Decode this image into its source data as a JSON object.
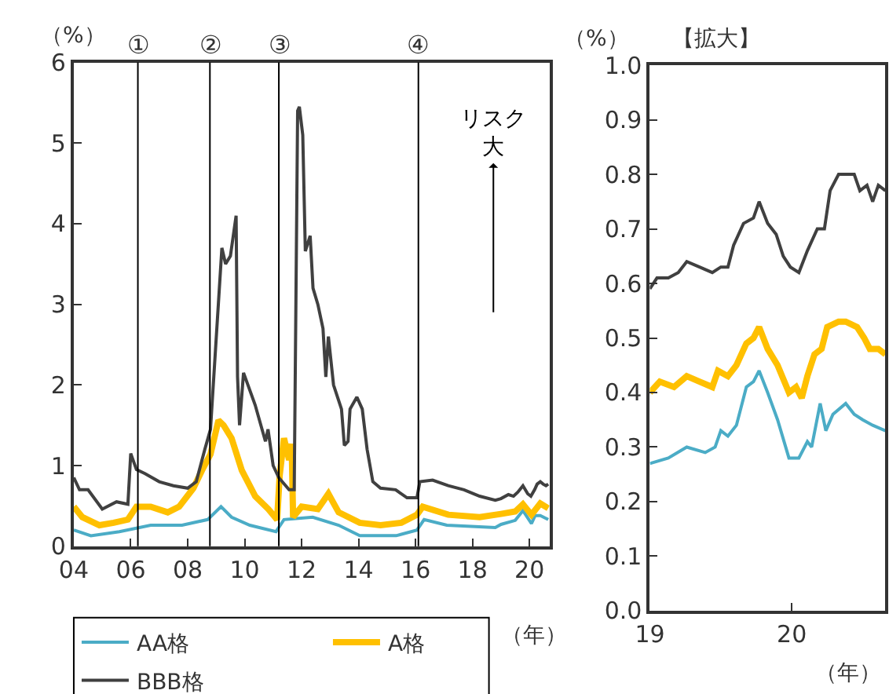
{
  "chart_data": [
    {
      "type": "line",
      "xlabel": "（年）",
      "ylabel": "（%）",
      "annotations": [
        "リスク大"
      ],
      "xlim": [
        2004,
        2020.7
      ],
      "ylim": [
        0,
        6
      ],
      "xticks": [
        {
          "value": 2004,
          "label": "04"
        },
        {
          "value": 2006,
          "label": "06"
        },
        {
          "value": 2008,
          "label": "08"
        },
        {
          "value": 2010,
          "label": "10"
        },
        {
          "value": 2012,
          "label": "12"
        },
        {
          "value": 2014,
          "label": "14"
        },
        {
          "value": 2016,
          "label": "16"
        },
        {
          "value": 2018,
          "label": "18"
        },
        {
          "value": 2020,
          "label": "20"
        }
      ],
      "yticks": [
        0,
        1,
        2,
        3,
        4,
        5,
        6
      ],
      "legend": "bottom",
      "ref_lines": [
        {
          "axis": "x",
          "value": 2006.25,
          "label": "①"
        },
        {
          "axis": "x",
          "value": 2008.78,
          "label": "②"
        },
        {
          "axis": "x",
          "value": 2011.2,
          "label": "③"
        },
        {
          "axis": "x",
          "value": 2016.1,
          "label": "④"
        }
      ],
      "series": [
        {
          "name": "AA格",
          "color": "#4bacc6",
          "x": [
            2004.0,
            2004.6,
            2005.6,
            2006.7,
            2007.8,
            2008.7,
            2009.17,
            2009.54,
            2010.18,
            2011.1,
            2011.38,
            2012.39,
            2013.3,
            2014.04,
            2015.32,
            2016.05,
            2016.3,
            2017.1,
            2018.8,
            2019.0,
            2019.5,
            2019.77,
            2020.07,
            2020.2,
            2020.38,
            2020.66
          ],
          "values": [
            0.2,
            0.13,
            0.18,
            0.26,
            0.26,
            0.33,
            0.49,
            0.36,
            0.26,
            0.18,
            0.33,
            0.36,
            0.26,
            0.13,
            0.13,
            0.2,
            0.33,
            0.26,
            0.23,
            0.27,
            0.32,
            0.44,
            0.28,
            0.38,
            0.38,
            0.33
          ]
        },
        {
          "name": "A格",
          "color": "#ffc000",
          "x": [
            2004.0,
            2004.3,
            2004.9,
            2005.4,
            2005.9,
            2006.2,
            2006.7,
            2007.3,
            2007.7,
            2008.2,
            2008.5,
            2008.8,
            2009.08,
            2009.26,
            2009.54,
            2009.9,
            2010.37,
            2010.83,
            2011.14,
            2011.23,
            2011.38,
            2011.56,
            2011.65,
            2011.7,
            2012.0,
            2012.57,
            2012.94,
            2013.3,
            2014.04,
            2014.77,
            2015.5,
            2016.05,
            2016.25,
            2017.15,
            2018.25,
            2019.0,
            2019.5,
            2019.77,
            2020.07,
            2020.38,
            2020.66
          ],
          "values": [
            0.49,
            0.36,
            0.26,
            0.29,
            0.33,
            0.49,
            0.49,
            0.42,
            0.49,
            0.72,
            0.94,
            1.14,
            1.56,
            1.5,
            1.34,
            0.94,
            0.62,
            0.46,
            0.33,
            0.88,
            1.34,
            1.07,
            1.27,
            0.36,
            0.49,
            0.46,
            0.65,
            0.42,
            0.29,
            0.26,
            0.29,
            0.39,
            0.49,
            0.39,
            0.36,
            0.4,
            0.43,
            0.52,
            0.39,
            0.53,
            0.47
          ]
        },
        {
          "name": "BBB格",
          "color": "#404040",
          "x": [
            2004.0,
            2004.2,
            2004.5,
            2005.0,
            2005.5,
            2005.9,
            2006.0,
            2006.2,
            2006.5,
            2007.0,
            2007.5,
            2008.0,
            2008.3,
            2008.6,
            2008.8,
            2009.2,
            2009.33,
            2009.5,
            2009.7,
            2009.75,
            2009.82,
            2009.96,
            2010.37,
            2010.73,
            2010.82,
            2011.0,
            2011.2,
            2011.56,
            2011.74,
            2011.86,
            2011.92,
            2012.04,
            2012.13,
            2012.3,
            2012.4,
            2012.57,
            2012.75,
            2012.85,
            2012.94,
            2013.12,
            2013.4,
            2013.5,
            2013.63,
            2013.7,
            2013.94,
            2014.13,
            2014.3,
            2014.5,
            2014.77,
            2015.3,
            2015.7,
            2016.05,
            2016.15,
            2016.6,
            2017.15,
            2017.7,
            2018.25,
            2018.8,
            2019.0,
            2019.26,
            2019.44,
            2019.59,
            2019.77,
            2019.94,
            2020.05,
            2020.18,
            2020.27,
            2020.38,
            2020.48,
            2020.58,
            2020.66
          ],
          "values": [
            0.85,
            0.7,
            0.7,
            0.46,
            0.55,
            0.52,
            1.15,
            0.95,
            0.9,
            0.8,
            0.75,
            0.72,
            0.8,
            1.2,
            1.45,
            3.7,
            3.5,
            3.6,
            4.1,
            2.1,
            1.5,
            2.15,
            1.75,
            1.3,
            1.45,
            1.0,
            0.85,
            0.7,
            0.7,
            5.4,
            5.45,
            5.1,
            3.66,
            3.85,
            3.2,
            3.0,
            2.7,
            2.1,
            2.6,
            2.0,
            1.7,
            1.25,
            1.3,
            1.7,
            1.85,
            1.7,
            1.2,
            0.8,
            0.72,
            0.7,
            0.6,
            0.6,
            0.8,
            0.82,
            0.75,
            0.7,
            0.62,
            0.57,
            0.59,
            0.64,
            0.62,
            0.67,
            0.75,
            0.65,
            0.62,
            0.7,
            0.77,
            0.8,
            0.77,
            0.75,
            0.77
          ]
        }
      ]
    },
    {
      "type": "line",
      "title": "【拡大】",
      "xlabel": "（年）",
      "ylabel": "（%）",
      "xlim": [
        2019,
        2020.66
      ],
      "ylim": [
        0,
        1
      ],
      "xticks": [
        {
          "value": 2019,
          "label": "19"
        },
        {
          "value": 2020,
          "label": "20"
        }
      ],
      "yticks": [
        {
          "value": 0,
          "label": "0.0"
        },
        {
          "value": 0.1,
          "label": "0.1"
        },
        {
          "value": 0.2,
          "label": "0.2"
        },
        {
          "value": 0.3,
          "label": "0.3"
        },
        {
          "value": 0.4,
          "label": "0.4"
        },
        {
          "value": 0.5,
          "label": "0.5"
        },
        {
          "value": 0.6,
          "label": "0.6"
        },
        {
          "value": 0.7,
          "label": "0.7"
        },
        {
          "value": 0.8,
          "label": "0.8"
        },
        {
          "value": 0.9,
          "label": "0.9"
        },
        {
          "value": 1,
          "label": "1.0"
        }
      ],
      "series": [
        {
          "color": "#4bacc6",
          "x": [
            2019.0,
            2019.13,
            2019.26,
            2019.39,
            2019.46,
            2019.5,
            2019.55,
            2019.61,
            2019.68,
            2019.73,
            2019.77,
            2019.83,
            2019.9,
            2019.98,
            2020.05,
            2020.11,
            2020.14,
            2020.2,
            2020.24,
            2020.29,
            2020.38,
            2020.44,
            2020.5,
            2020.57,
            2020.66
          ],
          "values": [
            0.27,
            0.28,
            0.3,
            0.29,
            0.3,
            0.33,
            0.32,
            0.34,
            0.41,
            0.42,
            0.44,
            0.4,
            0.35,
            0.28,
            0.28,
            0.31,
            0.3,
            0.38,
            0.33,
            0.36,
            0.38,
            0.36,
            0.35,
            0.34,
            0.33
          ]
        },
        {
          "color": "#ffc000",
          "x": [
            2019.0,
            2019.07,
            2019.17,
            2019.26,
            2019.35,
            2019.44,
            2019.48,
            2019.55,
            2019.61,
            2019.68,
            2019.73,
            2019.77,
            2019.83,
            2019.9,
            2019.98,
            2020.03,
            2020.07,
            2020.11,
            2020.16,
            2020.21,
            2020.25,
            2020.33,
            2020.38,
            2020.46,
            2020.51,
            2020.55,
            2020.61,
            2020.66
          ],
          "values": [
            0.4,
            0.42,
            0.41,
            0.43,
            0.42,
            0.41,
            0.44,
            0.43,
            0.45,
            0.49,
            0.5,
            0.52,
            0.48,
            0.45,
            0.4,
            0.41,
            0.39,
            0.43,
            0.47,
            0.48,
            0.52,
            0.53,
            0.53,
            0.52,
            0.5,
            0.48,
            0.48,
            0.47
          ]
        },
        {
          "color": "#404040",
          "x": [
            2019.0,
            2019.05,
            2019.13,
            2019.2,
            2019.26,
            2019.35,
            2019.44,
            2019.5,
            2019.55,
            2019.59,
            2019.66,
            2019.73,
            2019.77,
            2019.83,
            2019.89,
            2019.94,
            2019.99,
            2020.05,
            2020.11,
            2020.18,
            2020.23,
            2020.27,
            2020.33,
            2020.38,
            2020.44,
            2020.48,
            2020.53,
            2020.57,
            2020.61,
            2020.66
          ],
          "values": [
            0.59,
            0.61,
            0.61,
            0.62,
            0.64,
            0.63,
            0.62,
            0.63,
            0.63,
            0.67,
            0.71,
            0.72,
            0.75,
            0.71,
            0.69,
            0.65,
            0.63,
            0.62,
            0.66,
            0.7,
            0.7,
            0.77,
            0.8,
            0.8,
            0.8,
            0.77,
            0.78,
            0.75,
            0.78,
            0.77
          ]
        }
      ]
    }
  ]
}
